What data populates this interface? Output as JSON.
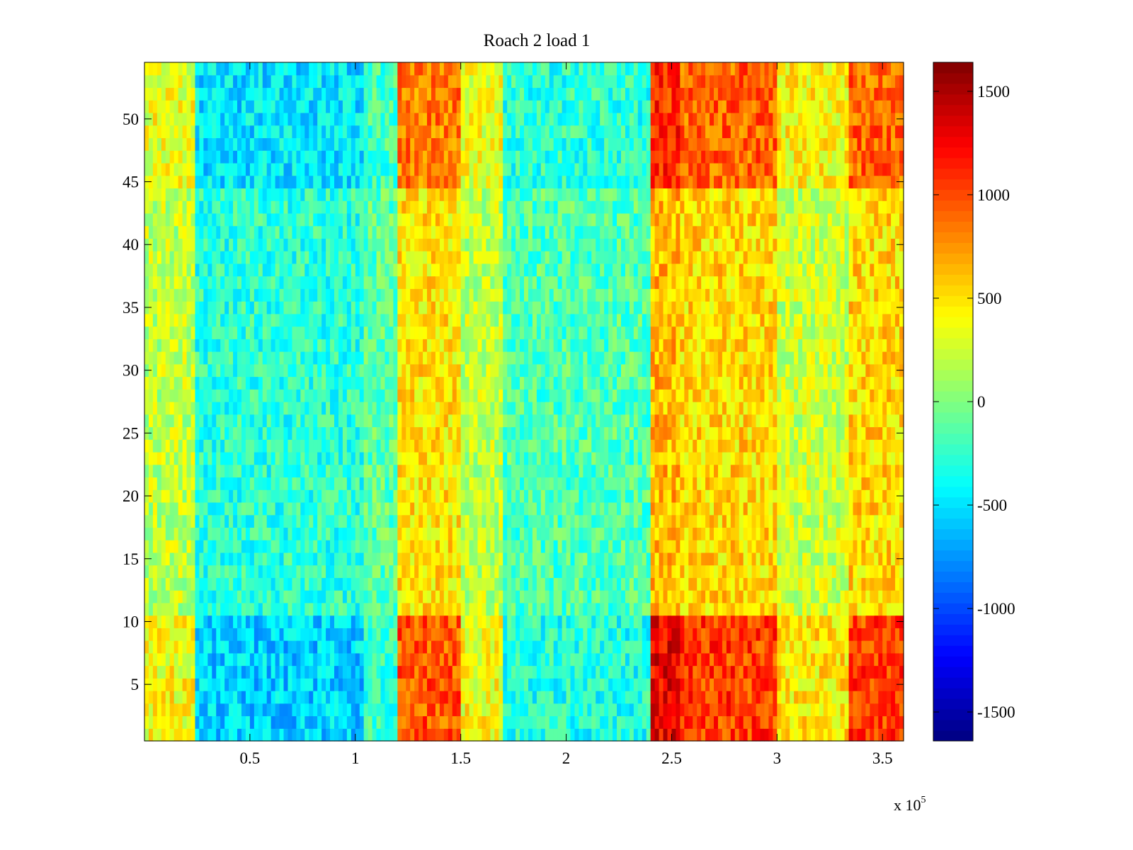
{
  "chart_data": {
    "type": "heatmap",
    "title": "Roach 2 load 1",
    "xlabel": "",
    "ylabel": "",
    "x_exponent_label": "x 10",
    "x_exponent_power": "5",
    "xlim": [
      0,
      360000
    ],
    "ylim": [
      0.5,
      54.5
    ],
    "x_ticks": [
      50000,
      100000,
      150000,
      200000,
      250000,
      300000,
      350000
    ],
    "x_tick_labels": [
      "0.5",
      "1",
      "1.5",
      "2",
      "2.5",
      "3",
      "3.5"
    ],
    "y_ticks": [
      5,
      10,
      15,
      20,
      25,
      30,
      35,
      40,
      45,
      50
    ],
    "y_tick_labels": [
      "5",
      "10",
      "15",
      "20",
      "25",
      "30",
      "35",
      "40",
      "45",
      "50"
    ],
    "rows": 54,
    "colorbar": {
      "colormap": "jet",
      "clim": [
        -1640,
        1640
      ],
      "ticks": [
        -1500,
        -1000,
        -500,
        0,
        500,
        1000,
        1500
      ],
      "tick_labels": [
        "-1500",
        "-1000",
        "-500",
        "0",
        "500",
        "1000",
        "1500"
      ]
    },
    "column_band_profile": [
      {
        "x_range": [
          0,
          25000
        ],
        "typical_value": 250
      },
      {
        "x_range": [
          25000,
          105000
        ],
        "typical_value": -350
      },
      {
        "x_range": [
          105000,
          120000
        ],
        "typical_value": -150
      },
      {
        "x_range": [
          120000,
          150000
        ],
        "typical_value": 600
      },
      {
        "x_range": [
          150000,
          170000
        ],
        "typical_value": 250
      },
      {
        "x_range": [
          170000,
          240000
        ],
        "typical_value": -200
      },
      {
        "x_range": [
          240000,
          255000
        ],
        "typical_value": 800
      },
      {
        "x_range": [
          255000,
          300000
        ],
        "typical_value": 650
      },
      {
        "x_range": [
          300000,
          335000
        ],
        "typical_value": 300
      },
      {
        "x_range": [
          335000,
          360000
        ],
        "typical_value": 650
      }
    ],
    "row_band_profile": [
      {
        "y_range": [
          0.5,
          10.5
        ],
        "amplification": 1.6
      },
      {
        "y_range": [
          10.5,
          44.5
        ],
        "amplification": 0.8
      },
      {
        "y_range": [
          44.5,
          54.5
        ],
        "amplification": 1.4
      }
    ]
  }
}
